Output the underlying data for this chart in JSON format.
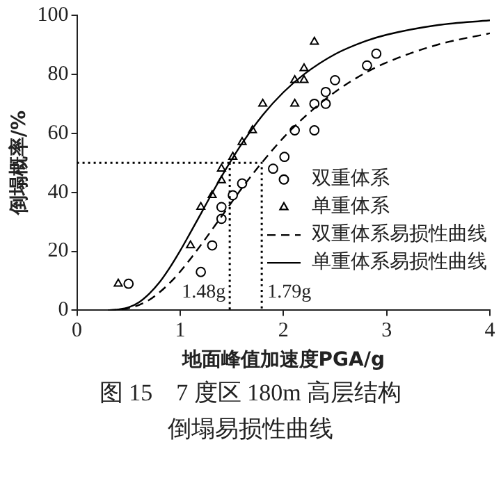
{
  "chart_data": {
    "type": "line",
    "title": "图 15　7 度区 180m 高层结构倒塌易损性曲线",
    "xlabel": "地面峰值加速度PGA/g",
    "ylabel": "倒塌概率/%",
    "xlim": [
      0,
      4
    ],
    "xticks": [
      0,
      1,
      2,
      3,
      4
    ],
    "ylim": [
      0,
      100
    ],
    "yticks": [
      0,
      20,
      40,
      60,
      80,
      100
    ],
    "legend": "right",
    "series": [
      {
        "name": "双重体系",
        "type": "scatter",
        "marker": "circle",
        "color": "#000000",
        "x": [
          0.5,
          1.2,
          1.31,
          1.4,
          1.4,
          1.51,
          1.6,
          1.9,
          2.01,
          2.11,
          2.3,
          2.3,
          2.41,
          2.41,
          2.5,
          2.81,
          2.9
        ],
        "values": [
          9,
          13,
          22,
          31,
          35,
          39,
          43,
          48,
          52,
          61,
          61,
          70,
          70,
          74,
          78,
          83,
          87
        ]
      },
      {
        "name": "单重体系",
        "type": "scatter",
        "marker": "triangle",
        "color": "#000000",
        "x": [
          0.4,
          1.1,
          1.2,
          1.31,
          1.4,
          1.4,
          1.51,
          1.6,
          1.7,
          1.8,
          2.11,
          2.11,
          2.2,
          2.2,
          2.3
        ],
        "values": [
          9,
          22,
          35,
          39,
          44,
          48,
          52,
          57,
          61,
          70,
          70,
          78,
          78,
          82,
          91
        ]
      },
      {
        "name": "双重体系易损性曲线",
        "marker": "none",
        "line_style": "dashed",
        "color": "#000000",
        "x": [
          0.3,
          0.4,
          0.5,
          0.6,
          0.7,
          0.8,
          0.9,
          1.0,
          1.2,
          1.4,
          1.6,
          1.79,
          2.0,
          2.2,
          2.5,
          2.8,
          3.0,
          3.5,
          4.0
        ],
        "values": [
          0,
          0.2,
          0.7,
          1.8,
          3.5,
          6.1,
          9.3,
          13.1,
          22.1,
          31.8,
          41.5,
          50,
          58.5,
          65.4,
          74,
          80.6,
          84,
          90.1,
          93.9
        ]
      },
      {
        "name": "单重体系易损性曲线",
        "marker": "none",
        "line_style": "solid",
        "color": "#000000",
        "x": [
          0.3,
          0.4,
          0.5,
          0.6,
          0.7,
          0.8,
          0.9,
          1.0,
          1.1,
          1.2,
          1.3,
          1.4,
          1.48,
          1.6,
          1.8,
          2.0,
          2.2,
          2.5,
          2.8,
          3.0,
          3.5,
          4.0
        ],
        "values": [
          0,
          0.3,
          1,
          2.7,
          5.6,
          9.5,
          14.5,
          20.2,
          26.4,
          32.7,
          39.1,
          45.3,
          50,
          56.6,
          66.2,
          73.9,
          80,
          86.8,
          91.3,
          93.4,
          96.7,
          98.3
        ]
      },
      {
        "marker": "none",
        "line_style": "dotted",
        "color": "#000000",
        "x": [
          0,
          1.79,
          1.79
        ],
        "values": [
          50,
          50,
          0
        ]
      },
      {
        "marker": "none",
        "line_style": "dotted",
        "color": "#000000",
        "x": [
          1.48,
          1.48
        ],
        "values": [
          50,
          0
        ]
      }
    ],
    "annotations": [
      {
        "text": "1.48g",
        "x": 1.48,
        "y": 6
      },
      {
        "text": "1.79g",
        "x": 1.79,
        "y": 6
      }
    ]
  }
}
